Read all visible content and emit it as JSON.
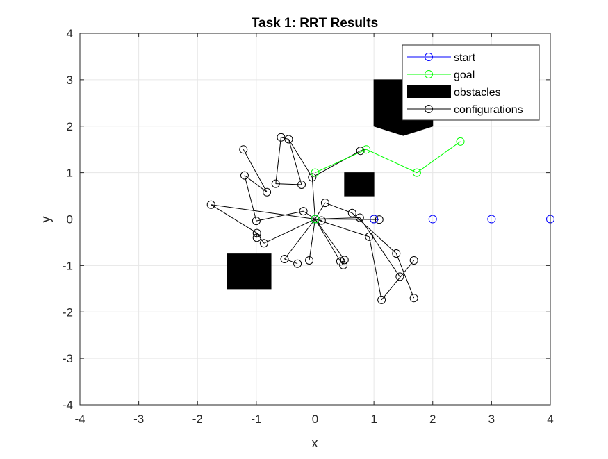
{
  "chart_data": {
    "type": "line",
    "title": "Task 1: RRT Results",
    "xlabel": "x",
    "ylabel": "y",
    "xlim": [
      -4,
      4
    ],
    "ylim": [
      -4,
      4
    ],
    "xticks": [
      "-4",
      "-3",
      "-2",
      "-1",
      "0",
      "1",
      "2",
      "3",
      "4"
    ],
    "yticks": [
      "-4",
      "-3",
      "-2",
      "-1",
      "0",
      "1",
      "2",
      "3",
      "4"
    ],
    "grid": true,
    "legend_position": "top-right",
    "colors": {
      "start": "#0000ff",
      "goal": "#00ff00",
      "obstacles": "#000000",
      "configurations": "#000000",
      "grid": "#e6e6e6"
    },
    "series": [
      {
        "name": "start",
        "points": [
          [
            0,
            0
          ],
          [
            1,
            0
          ],
          [
            2,
            0
          ],
          [
            3,
            0
          ],
          [
            4,
            0
          ]
        ]
      },
      {
        "name": "goal",
        "points": [
          [
            0,
            0
          ],
          [
            0,
            1
          ],
          [
            0.87,
            1.5
          ],
          [
            1.73,
            1.0
          ],
          [
            2.47,
            1.67
          ]
        ]
      },
      {
        "name": "obstacles",
        "polygons": [
          [
            [
              1.0,
              3.0
            ],
            [
              2.0,
              3.0
            ],
            [
              2.0,
              2.0
            ],
            [
              1.5,
              1.8
            ],
            [
              1.0,
              2.0
            ]
          ],
          [
            [
              0.5,
              1.0
            ],
            [
              1.0,
              1.0
            ],
            [
              1.0,
              0.5
            ],
            [
              0.5,
              0.5
            ]
          ],
          [
            [
              -1.5,
              -0.75
            ],
            [
              -0.75,
              -0.75
            ],
            [
              -0.75,
              -1.5
            ],
            [
              -1.5,
              -1.5
            ]
          ]
        ]
      },
      {
        "name": "configurations",
        "segments": [
          [
            [
              0,
              0
            ],
            [
              -0.2,
              0.17
            ]
          ],
          [
            [
              -0.2,
              0.17
            ],
            [
              -1.0,
              -0.04
            ]
          ],
          [
            [
              -1.0,
              -0.04
            ],
            [
              -1.2,
              0.94
            ]
          ],
          [
            [
              -1.2,
              0.94
            ],
            [
              -0.82,
              0.58
            ]
          ],
          [
            [
              -0.82,
              0.58
            ],
            [
              -1.22,
              1.5
            ]
          ],
          [
            [
              0,
              0
            ],
            [
              -1.77,
              0.31
            ]
          ],
          [
            [
              -1.77,
              0.31
            ],
            [
              -0.99,
              -0.3
            ]
          ],
          [
            [
              -0.99,
              -0.3
            ],
            [
              -0.99,
              -0.4
            ]
          ],
          [
            [
              0,
              0
            ],
            [
              -0.87,
              -0.52
            ]
          ],
          [
            [
              -0.87,
              -0.52
            ],
            [
              -0.99,
              -0.3
            ]
          ],
          [
            [
              0,
              0
            ],
            [
              -0.52,
              -0.86
            ]
          ],
          [
            [
              -0.52,
              -0.86
            ],
            [
              -0.3,
              -0.96
            ]
          ],
          [
            [
              0,
              0
            ],
            [
              -0.1,
              -0.89
            ]
          ],
          [
            [
              0,
              0
            ],
            [
              0.43,
              -0.91
            ]
          ],
          [
            [
              0.43,
              -0.91
            ],
            [
              0.48,
              -0.99
            ]
          ],
          [
            [
              0,
              0
            ],
            [
              0.5,
              -0.88
            ]
          ],
          [
            [
              0,
              0
            ],
            [
              0.17,
              0.35
            ]
          ],
          [
            [
              0.17,
              0.35
            ],
            [
              0.63,
              0.13
            ]
          ],
          [
            [
              0.63,
              0.13
            ],
            [
              1.38,
              -0.74
            ]
          ],
          [
            [
              1.38,
              -0.74
            ],
            [
              1.68,
              -1.7
            ]
          ],
          [
            [
              0,
              0
            ],
            [
              0.92,
              -0.38
            ]
          ],
          [
            [
              0.92,
              -0.38
            ],
            [
              1.13,
              -1.74
            ]
          ],
          [
            [
              1.13,
              -1.74
            ],
            [
              1.68,
              -0.89
            ]
          ],
          [
            [
              0,
              0
            ],
            [
              0.76,
              0.03
            ]
          ],
          [
            [
              0.76,
              0.03
            ],
            [
              1.44,
              -1.24
            ]
          ],
          [
            [
              0,
              0
            ],
            [
              0.11,
              -0.03
            ]
          ],
          [
            [
              0,
              0
            ],
            [
              -0.05,
              0.9
            ]
          ],
          [
            [
              -0.05,
              0.9
            ],
            [
              -0.45,
              1.72
            ]
          ],
          [
            [
              -0.45,
              1.72
            ],
            [
              -0.58,
              1.76
            ]
          ],
          [
            [
              -0.58,
              1.76
            ],
            [
              -0.67,
              0.76
            ]
          ],
          [
            [
              -0.67,
              0.76
            ],
            [
              -0.23,
              0.74
            ]
          ],
          [
            [
              -0.23,
              0.74
            ],
            [
              -0.45,
              1.72
            ]
          ],
          [
            [
              -0.05,
              0.9
            ],
            [
              0.77,
              1.47
            ]
          ],
          [
            [
              0.77,
              1.47
            ],
            [
              0.87,
              1.5
            ]
          ],
          [
            [
              0,
              0
            ],
            [
              1.09,
              -0.01
            ]
          ]
        ],
        "markers": [
          [
            0,
            0
          ],
          [
            -0.2,
            0.17
          ],
          [
            -1.0,
            -0.04
          ],
          [
            -1.2,
            0.94
          ],
          [
            -0.82,
            0.58
          ],
          [
            -1.22,
            1.5
          ],
          [
            -1.77,
            0.31
          ],
          [
            -0.99,
            -0.3
          ],
          [
            -0.99,
            -0.4
          ],
          [
            -0.87,
            -0.52
          ],
          [
            -0.52,
            -0.86
          ],
          [
            -0.3,
            -0.96
          ],
          [
            -0.1,
            -0.89
          ],
          [
            0.43,
            -0.91
          ],
          [
            0.48,
            -0.99
          ],
          [
            0.5,
            -0.88
          ],
          [
            0.17,
            0.35
          ],
          [
            0.63,
            0.13
          ],
          [
            1.38,
            -0.74
          ],
          [
            1.68,
            -1.7
          ],
          [
            0.92,
            -0.38
          ],
          [
            1.13,
            -1.74
          ],
          [
            1.68,
            -0.89
          ],
          [
            0.76,
            0.03
          ],
          [
            1.44,
            -1.24
          ],
          [
            0.11,
            -0.03
          ],
          [
            -0.05,
            0.9
          ],
          [
            -0.45,
            1.72
          ],
          [
            -0.58,
            1.76
          ],
          [
            -0.67,
            0.76
          ],
          [
            -0.23,
            0.74
          ],
          [
            0.77,
            1.47
          ],
          [
            1.09,
            -0.01
          ],
          [
            1.0,
            0
          ]
        ]
      }
    ]
  }
}
